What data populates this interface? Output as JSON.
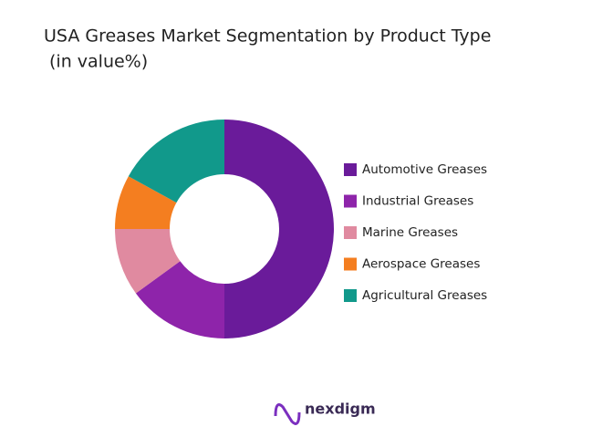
{
  "chart_data": {
    "type": "donut",
    "title": "USA Greases Market Segmentation by Product Type",
    "subtitle": "(in value%)",
    "categories": [
      "Automotive Greases",
      "Industrial Greases",
      "Marine Greases",
      "Aerospace Greases",
      "Agricultural Greases"
    ],
    "values": [
      50,
      15,
      10,
      8,
      17
    ],
    "colors": [
      "#6a1b9a",
      "#8e24aa",
      "#e08aa0",
      "#f47e20",
      "#11998b"
    ],
    "legend": "right"
  },
  "logo": {
    "text": "nexdigm"
  }
}
